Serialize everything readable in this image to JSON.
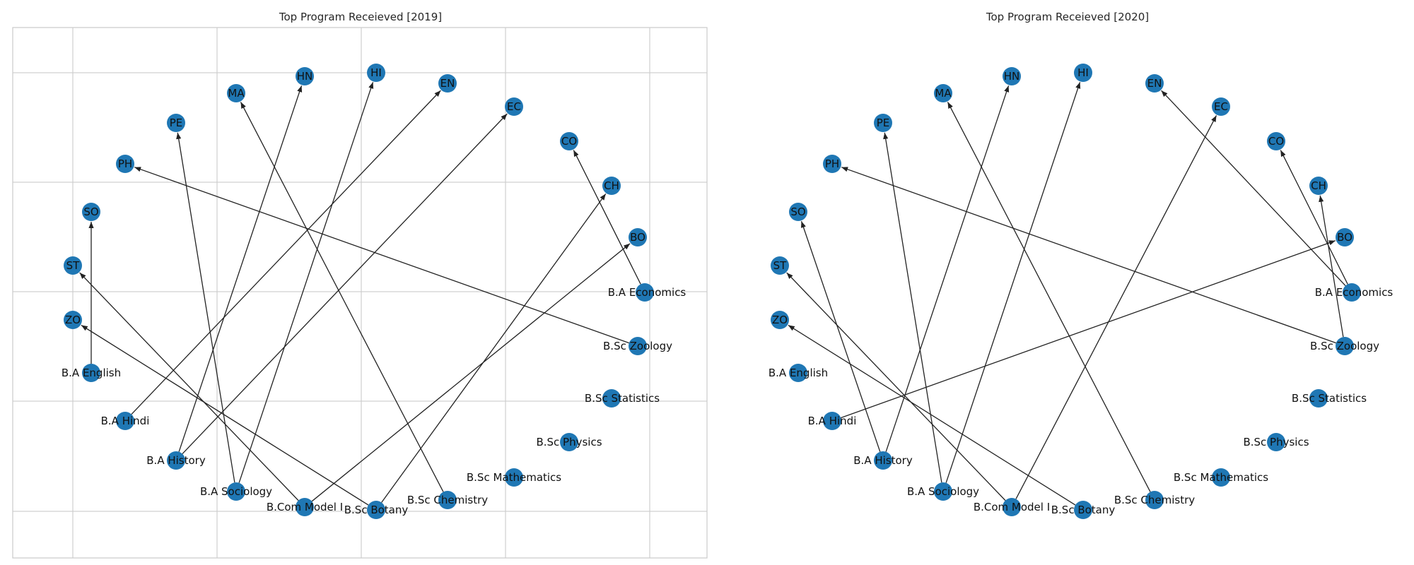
{
  "panels": [
    {
      "title": "Top Program Receieved [2019]",
      "frame_visible": true,
      "grid": true,
      "nodes": [
        "B.A Economics",
        "B.Sc Zoology",
        "B.Sc Statistics",
        "B.Sc Physics",
        "B.Sc Mathematics",
        "B.Sc Chemistry",
        "B.Sc Botany",
        "B.Com Model I",
        "B.A Sociology",
        "B.A History",
        "B.A Hindi",
        "B.A English",
        "ZO",
        "ST",
        "SO",
        "PH",
        "PE",
        "MA",
        "HN",
        "HI",
        "EN",
        "EC",
        "CO",
        "CH",
        "BO"
      ],
      "edges": [
        [
          "B.A English",
          "SO"
        ],
        [
          "B.A Hindi",
          "EN"
        ],
        [
          "B.A History",
          "HN"
        ],
        [
          "B.A History",
          "EC"
        ],
        [
          "B.A Sociology",
          "PE"
        ],
        [
          "B.A Sociology",
          "HI"
        ],
        [
          "B.Com Model I",
          "ST"
        ],
        [
          "B.Com Model I",
          "BO"
        ],
        [
          "B.Sc Botany",
          "ZO"
        ],
        [
          "B.Sc Botany",
          "CH"
        ],
        [
          "B.Sc Chemistry",
          "MA"
        ],
        [
          "B.A Economics",
          "CO"
        ],
        [
          "B.Sc Zoology",
          "PH"
        ]
      ]
    },
    {
      "title": "Top Program Receieved [2020]",
      "frame_visible": false,
      "grid": false,
      "nodes": [
        "B.A Economics",
        "B.Sc Zoology",
        "B.Sc Statistics",
        "B.Sc Physics",
        "B.Sc Mathematics",
        "B.Sc Chemistry",
        "B.Sc Botany",
        "B.Com Model I",
        "B.A Sociology",
        "B.A History",
        "B.A Hindi",
        "B.A English",
        "ZO",
        "ST",
        "SO",
        "PH",
        "PE",
        "MA",
        "HN",
        "HI",
        "EN",
        "EC",
        "CO",
        "CH",
        "BO"
      ],
      "edges": [
        [
          "B.A Hindi",
          "BO"
        ],
        [
          "B.A History",
          "SO"
        ],
        [
          "B.A History",
          "HN"
        ],
        [
          "B.A Sociology",
          "PE"
        ],
        [
          "B.A Sociology",
          "HI"
        ],
        [
          "B.Com Model I",
          "ST"
        ],
        [
          "B.Com Model I",
          "EC"
        ],
        [
          "B.Sc Botany",
          "ZO"
        ],
        [
          "B.Sc Chemistry",
          "MA"
        ],
        [
          "B.A Economics",
          "EN"
        ],
        [
          "B.A Economics",
          "CO"
        ],
        [
          "B.Sc Zoology",
          "PH"
        ],
        [
          "B.Sc Zoology",
          "CH"
        ]
      ]
    }
  ],
  "colors": {
    "node": "#1f77b4",
    "edge": "#222222",
    "grid": "#d0d0d0"
  }
}
